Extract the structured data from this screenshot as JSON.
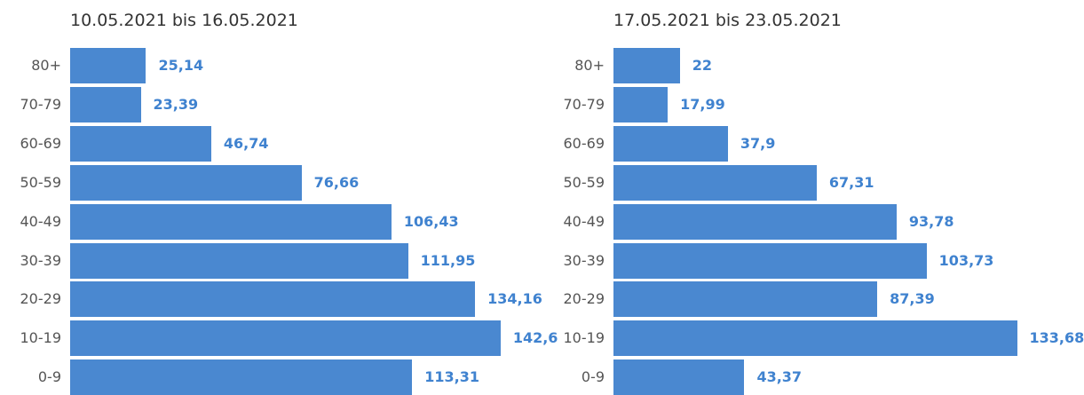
{
  "chart_data": [
    {
      "type": "bar",
      "orientation": "horizontal",
      "title": "10.05.2021 bis 16.05.2021",
      "categories": [
        "80+",
        "70-79",
        "60-69",
        "50-59",
        "40-49",
        "30-39",
        "20-29",
        "10-19",
        "0-9"
      ],
      "values": [
        25.14,
        23.39,
        46.74,
        76.66,
        106.43,
        111.95,
        134.16,
        142.6,
        113.31
      ],
      "value_labels": [
        "25,14",
        "23,39",
        "46,74",
        "76,66",
        "106,43",
        "111,95",
        "134,16",
        "142,6",
        "113,31"
      ],
      "xlim": [
        0,
        160
      ],
      "grid": false,
      "color": "#4a88d0",
      "label_color": "#3f82cf"
    },
    {
      "type": "bar",
      "orientation": "horizontal",
      "title": "17.05.2021 bis 23.05.2021",
      "categories": [
        "80+",
        "70-79",
        "60-69",
        "50-59",
        "40-49",
        "30-39",
        "20-29",
        "10-19",
        "0-9"
      ],
      "values": [
        22,
        17.99,
        37.9,
        67.31,
        93.78,
        103.73,
        87.39,
        133.68,
        43.37
      ],
      "value_labels": [
        "22",
        "17,99",
        "37,9",
        "67,31",
        "93,78",
        "103,73",
        "87,39",
        "133,68",
        "43,37"
      ],
      "xlim": [
        0,
        160
      ],
      "grid": false,
      "color": "#4a88d0",
      "label_color": "#3f82cf"
    }
  ]
}
